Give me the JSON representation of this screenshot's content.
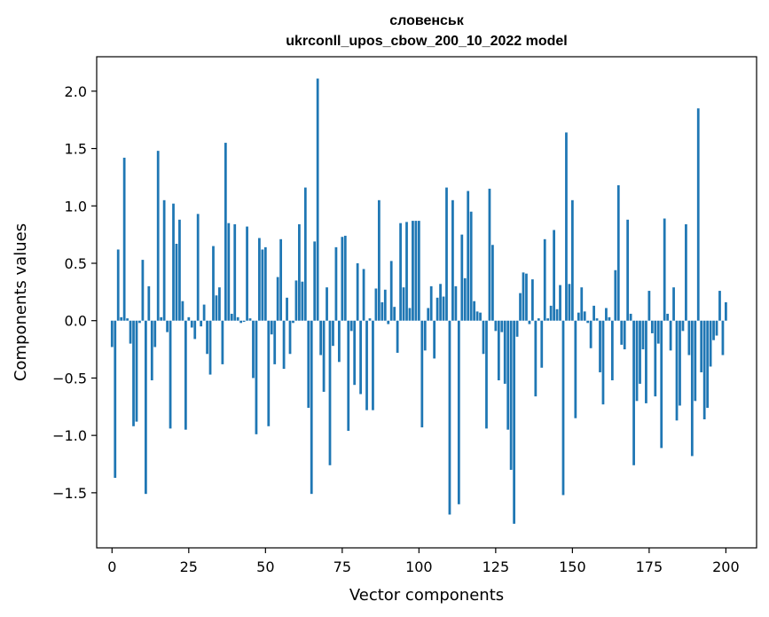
{
  "chart_data": {
    "type": "bar",
    "title": "словенськ\nukrconll_upos_cbow_200_10_2022 model",
    "title_lines": [
      "словенськ",
      "ukrconll_upos_cbow_200_10_2022 model"
    ],
    "xlabel": "Vector components",
    "ylabel": "Components values",
    "xlim": [
      -5,
      210
    ],
    "ylim": [
      -1.98,
      2.3
    ],
    "xticks": [
      0,
      25,
      50,
      75,
      100,
      125,
      150,
      175,
      200
    ],
    "yticks": [
      -1.5,
      -1.0,
      -0.5,
      0.0,
      0.5,
      1.0,
      1.5,
      2.0
    ],
    "xtick_labels": [
      "0",
      "25",
      "50",
      "75",
      "100",
      "125",
      "150",
      "175",
      "200"
    ],
    "ytick_labels": [
      "−1.5",
      "−1.0",
      "−0.5",
      "0.0",
      "0.5",
      "1.0",
      "1.5",
      "2.0"
    ],
    "bar_color": "#1f77b4",
    "grid": false,
    "values": [
      -0.23,
      -1.37,
      0.62,
      0.03,
      1.42,
      0.02,
      -0.2,
      -0.92,
      -0.88,
      -0.02,
      0.53,
      -1.51,
      0.3,
      -0.52,
      -0.23,
      1.48,
      0.03,
      1.05,
      -0.1,
      -0.94,
      1.02,
      0.67,
      0.88,
      0.17,
      -0.95,
      0.03,
      -0.06,
      -0.16,
      0.93,
      -0.05,
      0.14,
      -0.29,
      -0.47,
      0.65,
      0.22,
      0.29,
      -0.38,
      1.55,
      0.85,
      0.06,
      0.84,
      0.03,
      -0.02,
      -0.01,
      0.82,
      0.02,
      -0.5,
      -0.99,
      0.72,
      0.62,
      0.64,
      -0.92,
      -0.12,
      -0.38,
      0.38,
      0.71,
      -0.42,
      0.2,
      -0.29,
      -0.02,
      0.35,
      0.84,
      0.34,
      1.16,
      -0.76,
      -1.51,
      0.69,
      2.11,
      -0.3,
      -0.62,
      0.29,
      -1.26,
      -0.22,
      0.64,
      -0.36,
      0.73,
      0.74,
      -0.96,
      -0.09,
      -0.56,
      0.5,
      -0.64,
      0.45,
      -0.78,
      0.02,
      -0.78,
      0.28,
      1.05,
      0.16,
      0.27,
      -0.03,
      0.52,
      0.12,
      -0.28,
      0.85,
      0.29,
      0.86,
      0.11,
      0.87,
      0.87,
      0.87,
      -0.93,
      -0.26,
      0.11,
      0.3,
      -0.33,
      0.2,
      0.32,
      0.21,
      1.16,
      -1.69,
      1.05,
      0.3,
      -1.6,
      0.75,
      0.37,
      1.13,
      0.95,
      0.17,
      0.08,
      0.07,
      -0.29,
      -0.94,
      1.15,
      0.66,
      -0.09,
      -0.52,
      -0.1,
      -0.55,
      -0.95,
      -1.3,
      -1.77,
      -0.14,
      0.24,
      0.42,
      0.41,
      -0.03,
      0.36,
      -0.66,
      0.02,
      -0.41,
      0.71,
      0.02,
      0.13,
      0.79,
      0.1,
      0.31,
      -1.52,
      1.64,
      0.32,
      1.05,
      -0.85,
      0.07,
      0.29,
      0.08,
      -0.02,
      -0.24,
      0.13,
      0.02,
      -0.45,
      -0.73,
      0.11,
      0.03,
      -0.52,
      0.44,
      1.18,
      -0.21,
      -0.25,
      0.88,
      0.06,
      -1.26,
      -0.7,
      -0.55,
      -0.25,
      -0.72,
      0.26,
      -0.11,
      -0.66,
      -0.2,
      -1.11,
      0.89,
      0.06,
      -0.26,
      0.29,
      -0.87,
      -0.74,
      -0.09,
      0.84,
      -0.3,
      -1.18,
      -0.7,
      1.85,
      -0.45,
      -0.86,
      -0.76,
      -0.4,
      -0.17,
      -0.13,
      0.26,
      -0.3,
      0.16
    ]
  }
}
